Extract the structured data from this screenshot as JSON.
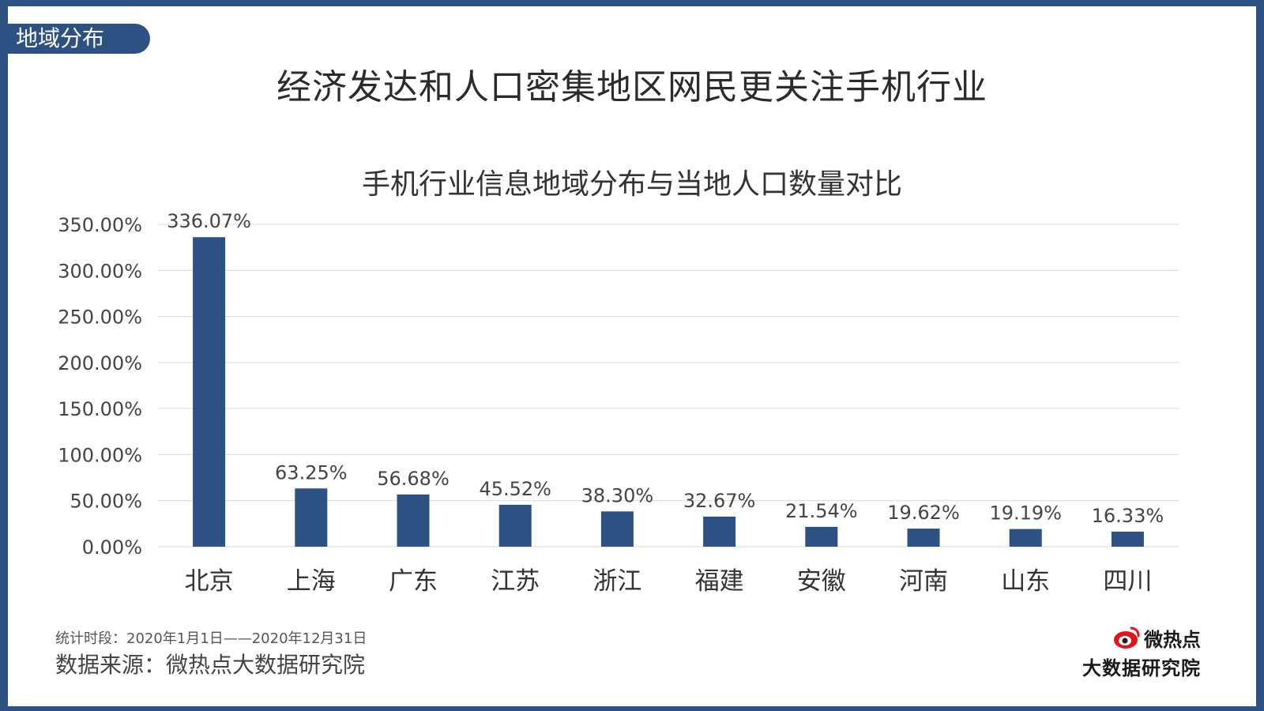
{
  "section_tag": "地域分布",
  "headline": "经济发达和人口密集地区网民更关注手机行业",
  "chart_data": {
    "type": "bar",
    "title": "手机行业信息地域分布与当地人口数量对比",
    "categories": [
      "北京",
      "上海",
      "广东",
      "江苏",
      "浙江",
      "福建",
      "安徽",
      "河南",
      "山东",
      "四川"
    ],
    "values": [
      336.07,
      63.25,
      56.68,
      45.52,
      38.3,
      32.67,
      21.54,
      19.62,
      19.19,
      16.33
    ],
    "value_labels": [
      "336.07%",
      "63.25%",
      "56.68%",
      "45.52%",
      "38.30%",
      "32.67%",
      "21.54%",
      "19.62%",
      "19.19%",
      "16.33%"
    ],
    "ylim": [
      0,
      350
    ],
    "yticks": [
      0,
      50,
      100,
      150,
      200,
      250,
      300,
      350
    ],
    "ytick_labels": [
      "0.00%",
      "50.00%",
      "100.00%",
      "150.00%",
      "200.00%",
      "250.00%",
      "300.00%",
      "350.00%"
    ],
    "grid": true,
    "bar_color": "#2d5182",
    "grid_color": "#d9d9d9"
  },
  "footer": {
    "period": "统计时段：2020年1月1日——2020年12月31日",
    "source": "数据来源：微热点大数据研究院"
  },
  "brand": {
    "name": "微热点",
    "subtitle": "大数据研究院",
    "logo_icon": "weibo-eye-icon",
    "logo_color": "#e4141b"
  }
}
